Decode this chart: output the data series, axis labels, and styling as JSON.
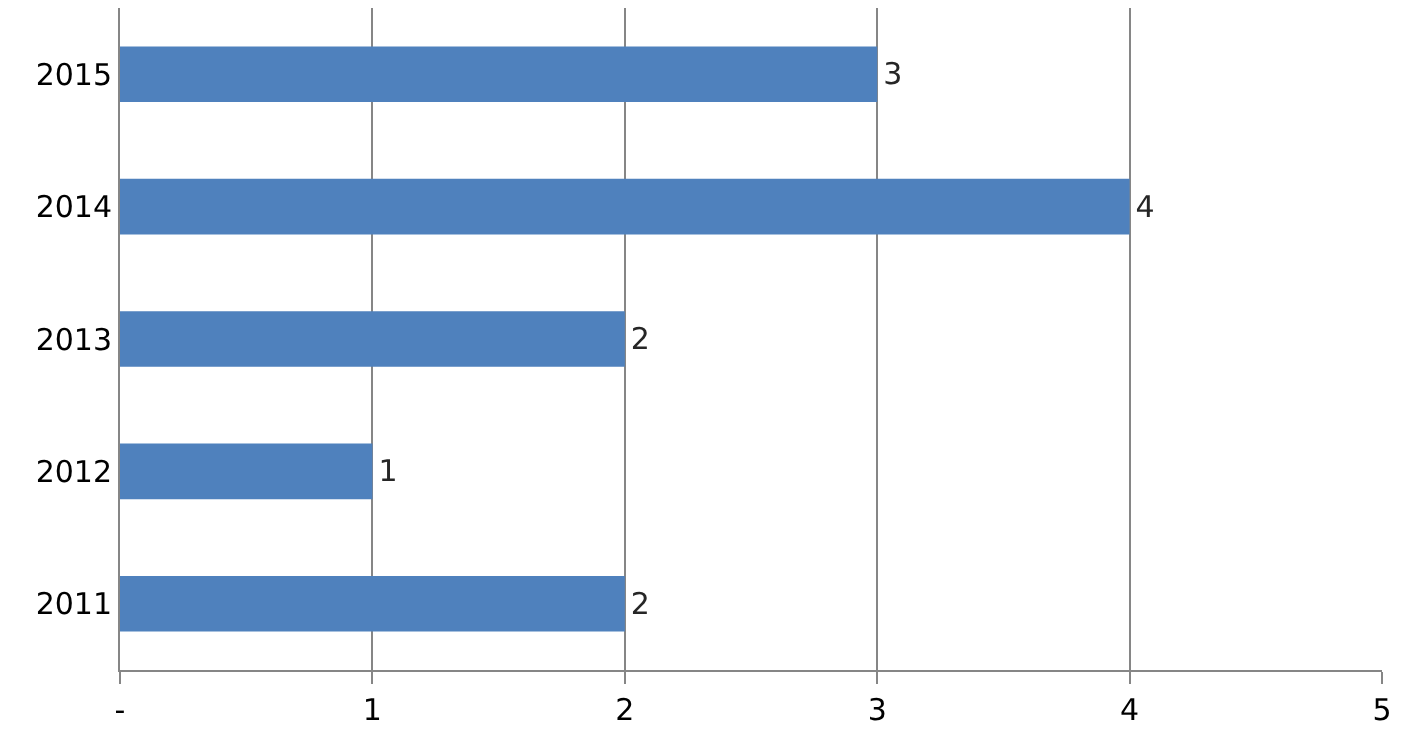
{
  "chart_data": {
    "type": "bar",
    "orientation": "horizontal",
    "categories": [
      "2015",
      "2014",
      "2013",
      "2012",
      "2011"
    ],
    "values": [
      3,
      4,
      2,
      1,
      2
    ],
    "color": "#4f81bd",
    "xlim": [
      0,
      5
    ],
    "xticks": [
      {
        "value": 0,
        "label": "-"
      },
      1,
      2,
      3,
      4,
      5
    ],
    "grid": "x",
    "data_labels": true,
    "legend": false
  }
}
